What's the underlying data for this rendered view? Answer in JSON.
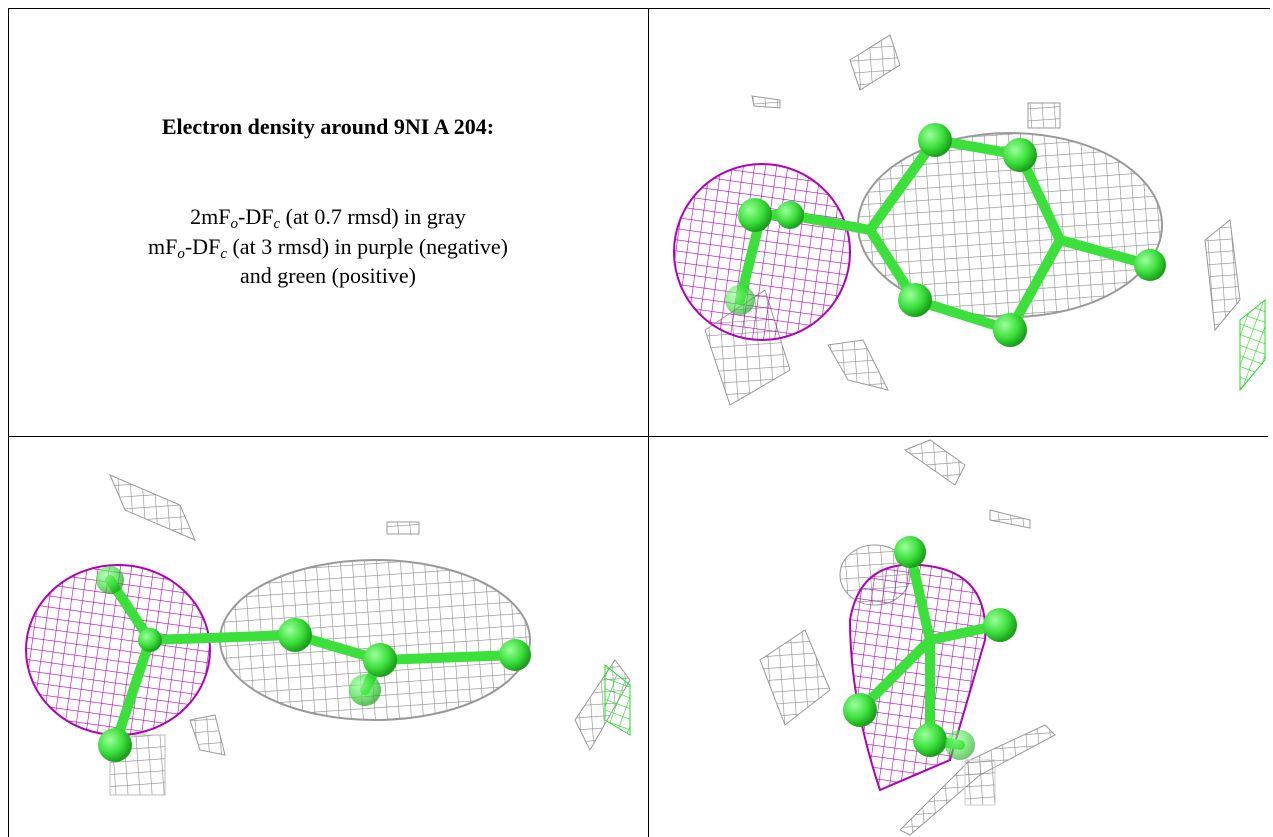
{
  "caption": {
    "title": "Electron density around 9NI A 204:",
    "lines": [
      [
        "2mF",
        "o",
        "-DF",
        "c",
        " (at 0.7 rmsd) in gray"
      ],
      [
        "mF",
        "o",
        "-DF",
        "c",
        " (at 3 rmsd) in purple (negative)"
      ],
      [
        "and green (positive)"
      ]
    ]
  }
}
